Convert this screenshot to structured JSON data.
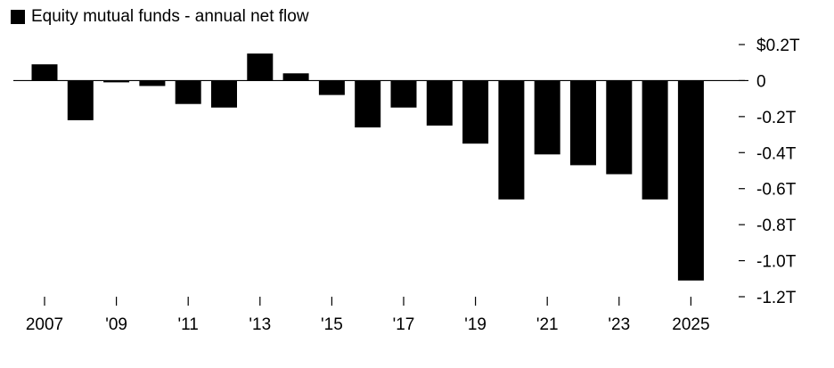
{
  "chart_data": {
    "type": "bar",
    "legend": {
      "label": "Equity mutual funds - annual net flow",
      "color": "#000000"
    },
    "categories": [
      "2007",
      "2008",
      "2009",
      "2010",
      "2011",
      "2012",
      "2013",
      "2014",
      "2015",
      "2016",
      "2017",
      "2018",
      "2019",
      "2020",
      "2021",
      "2022",
      "2023",
      "2024",
      "2025"
    ],
    "values": [
      0.09,
      -0.22,
      -0.01,
      -0.03,
      -0.13,
      -0.15,
      0.15,
      0.04,
      -0.08,
      -0.26,
      -0.15,
      -0.25,
      -0.35,
      -0.66,
      -0.41,
      -0.47,
      -0.52,
      -0.66,
      -1.11
    ],
    "bar_color": "#000000",
    "ylim": [
      -1.2,
      0.2
    ],
    "y_ticks": [
      {
        "value": 0.2,
        "label": "$0.2T"
      },
      {
        "value": 0.0,
        "label": "0"
      },
      {
        "value": -0.2,
        "label": "-0.2T"
      },
      {
        "value": -0.4,
        "label": "-0.4T"
      },
      {
        "value": -0.6,
        "label": "-0.6T"
      },
      {
        "value": -0.8,
        "label": "-0.8T"
      },
      {
        "value": -1.0,
        "label": "-1.0T"
      },
      {
        "value": -1.2,
        "label": "-1.2T"
      }
    ],
    "x_ticks": [
      {
        "index": 0,
        "label": "2007"
      },
      {
        "index": 2,
        "label": "'09"
      },
      {
        "index": 4,
        "label": "'11"
      },
      {
        "index": 6,
        "label": "'13"
      },
      {
        "index": 8,
        "label": "'15"
      },
      {
        "index": 10,
        "label": "'17"
      },
      {
        "index": 12,
        "label": "'19"
      },
      {
        "index": 14,
        "label": "'21"
      },
      {
        "index": 16,
        "label": "'23"
      },
      {
        "index": 18,
        "label": "2025"
      }
    ],
    "grid": false,
    "legend_position": "top-left",
    "axis_position": "right"
  }
}
